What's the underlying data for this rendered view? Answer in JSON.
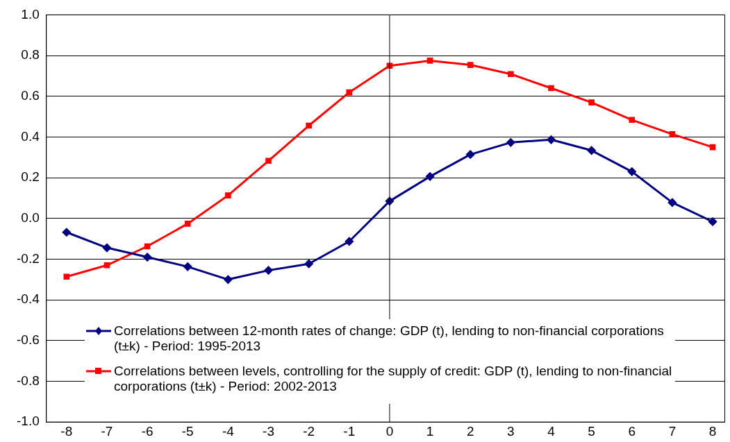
{
  "chart_data": {
    "type": "line",
    "x": [
      -8,
      -7,
      -6,
      -5,
      -4,
      -3,
      -2,
      -1,
      0,
      1,
      2,
      3,
      4,
      5,
      6,
      7,
      8
    ],
    "series": [
      {
        "name": "Correlations between 12-month rates of change: GDP (t), lending to non-financial corporations (t±k)   - Period: 1995-2013",
        "color": "#000080",
        "marker": "diamond",
        "values": [
          -0.068,
          -0.144,
          -0.19,
          -0.237,
          -0.3,
          -0.255,
          -0.223,
          -0.113,
          0.085,
          0.206,
          0.314,
          0.373,
          0.387,
          0.334,
          0.23,
          0.078,
          -0.016
        ]
      },
      {
        "name": "Correlations between levels, controlling for the supply of credit: GDP (t), lending to non-financial corporations (t±k)   - Period: 2002-2013",
        "color": "#ff0000",
        "marker": "square",
        "values": [
          -0.286,
          -0.23,
          -0.137,
          -0.026,
          0.113,
          0.283,
          0.456,
          0.619,
          0.75,
          0.775,
          0.754,
          0.709,
          0.64,
          0.57,
          0.484,
          0.414,
          0.35
        ]
      }
    ],
    "xlim": [
      -8.5,
      8.3
    ],
    "xticks": [
      -8,
      -7,
      -6,
      -5,
      -4,
      -3,
      -2,
      -1,
      0,
      1,
      2,
      3,
      4,
      5,
      6,
      7,
      8
    ],
    "ylim": [
      -1,
      1
    ],
    "yticks": [
      {
        "value": -1,
        "label": "-1.0"
      },
      {
        "value": -0.8,
        "label": "-0.8"
      },
      {
        "value": -0.6,
        "label": "-0.6"
      },
      {
        "value": -0.4,
        "label": "-0.4"
      },
      {
        "value": -0.2,
        "label": "-0.2"
      },
      {
        "value": 0,
        "label": "0.0"
      },
      {
        "value": 0.2,
        "label": "0.2"
      },
      {
        "value": 0.4,
        "label": "0.4"
      },
      {
        "value": 0.6,
        "label": "0.6"
      },
      {
        "value": 0.8,
        "label": "0.8"
      },
      {
        "value": 1,
        "label": "1.0"
      }
    ],
    "grid": "y",
    "ref_lines": [
      {
        "axis": "x",
        "value": 0,
        "color": "#000000"
      }
    ],
    "legend": "bottom",
    "line_style": "solid"
  }
}
